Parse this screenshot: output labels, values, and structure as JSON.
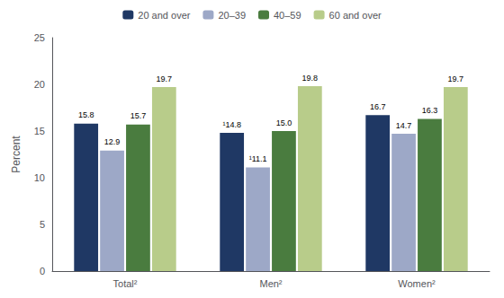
{
  "chart_data": {
    "type": "bar",
    "categories": [
      "Total²",
      "Men²",
      "Women²"
    ],
    "series": [
      {
        "name": "20 and over",
        "color": "#1f3864",
        "values": [
          15.8,
          14.8,
          16.7
        ],
        "value_labels": [
          "15.8",
          "¹14.8",
          "16.7"
        ]
      },
      {
        "name": "20–39",
        "color": "#9da8c7",
        "values": [
          12.9,
          11.1,
          14.7
        ],
        "value_labels": [
          "12.9",
          "¹11.1",
          "14.7"
        ]
      },
      {
        "name": "40–59",
        "color": "#4a7c3f",
        "values": [
          15.7,
          15.0,
          16.3
        ],
        "value_labels": [
          "15.7",
          "15.0",
          "16.3"
        ]
      },
      {
        "name": "60 and over",
        "color": "#b8cc8a",
        "values": [
          19.7,
          19.8,
          19.7
        ],
        "value_labels": [
          "19.7",
          "19.8",
          "19.7"
        ]
      }
    ],
    "ylabel": "Percent",
    "ylim": [
      0,
      25
    ],
    "yticks": [
      0,
      5,
      10,
      15,
      20,
      25
    ],
    "data_labels": true,
    "legend": "top",
    "grid": false
  }
}
